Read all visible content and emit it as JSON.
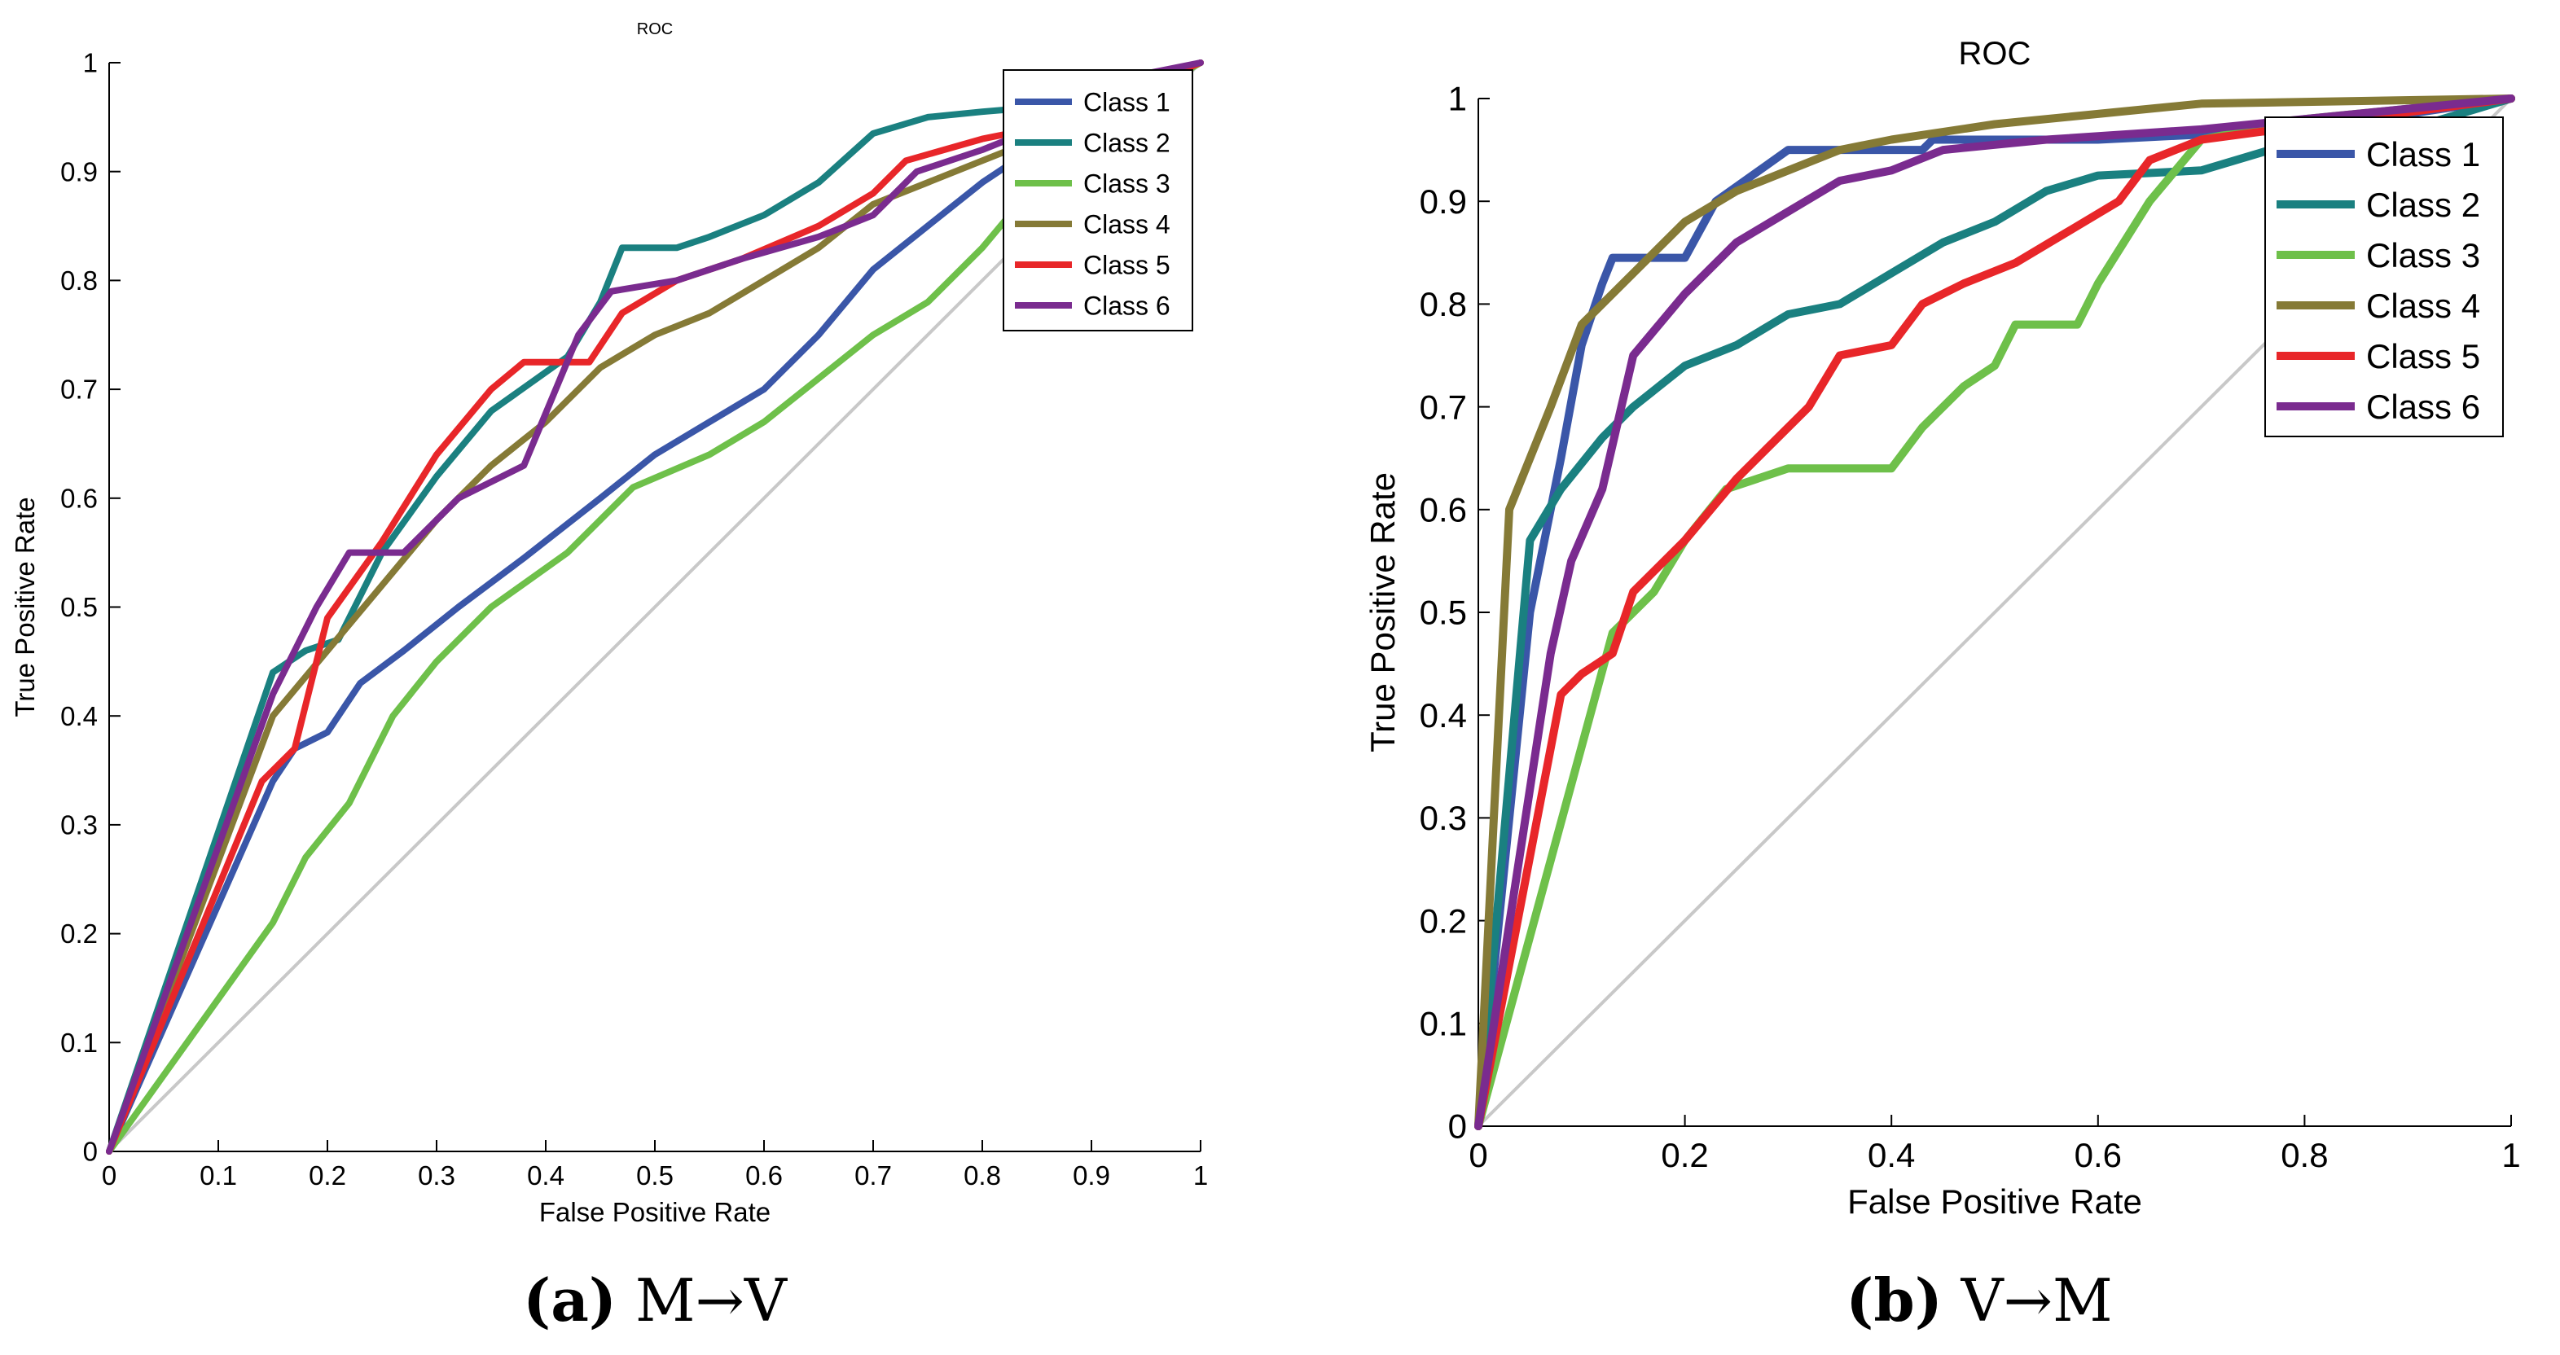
{
  "chart_data": [
    {
      "type": "line",
      "panel": "a",
      "title": "ROC",
      "xlabel": "False Positive Rate",
      "ylabel": "True Positive Rate",
      "xlim": [
        0,
        1
      ],
      "ylim": [
        0,
        1
      ],
      "xticks": [
        "0",
        "0.1",
        "0.2",
        "0.3",
        "0.4",
        "0.5",
        "0.6",
        "0.7",
        "0.8",
        "0.9",
        "1"
      ],
      "yticks": [
        "0",
        "0.1",
        "0.2",
        "0.3",
        "0.4",
        "0.5",
        "0.6",
        "0.7",
        "0.8",
        "0.9",
        "1"
      ],
      "grid": false,
      "legend_position": "top-right",
      "caption_label": "(a)",
      "caption_text": "M→V",
      "diagonal": [
        [
          0,
          0
        ],
        [
          1,
          1
        ]
      ],
      "series": [
        {
          "name": "Class 1",
          "color": "#3a56a8",
          "points": [
            [
              0,
              0
            ],
            [
              0.15,
              0.34
            ],
            [
              0.17,
              0.37
            ],
            [
              0.2,
              0.385
            ],
            [
              0.23,
              0.43
            ],
            [
              0.27,
              0.46
            ],
            [
              0.32,
              0.5
            ],
            [
              0.38,
              0.545
            ],
            [
              0.45,
              0.6
            ],
            [
              0.5,
              0.64
            ],
            [
              0.55,
              0.67
            ],
            [
              0.6,
              0.7
            ],
            [
              0.65,
              0.75
            ],
            [
              0.7,
              0.81
            ],
            [
              0.75,
              0.85
            ],
            [
              0.8,
              0.89
            ],
            [
              0.86,
              0.93
            ],
            [
              0.92,
              0.96
            ],
            [
              0.96,
              0.98
            ],
            [
              1,
              1
            ]
          ]
        },
        {
          "name": "Class 2",
          "color": "#1a8080",
          "points": [
            [
              0,
              0
            ],
            [
              0.15,
              0.44
            ],
            [
              0.18,
              0.46
            ],
            [
              0.21,
              0.47
            ],
            [
              0.25,
              0.55
            ],
            [
              0.3,
              0.62
            ],
            [
              0.35,
              0.68
            ],
            [
              0.42,
              0.73
            ],
            [
              0.45,
              0.78
            ],
            [
              0.47,
              0.83
            ],
            [
              0.52,
              0.83
            ],
            [
              0.55,
              0.84
            ],
            [
              0.6,
              0.86
            ],
            [
              0.65,
              0.89
            ],
            [
              0.7,
              0.935
            ],
            [
              0.75,
              0.95
            ],
            [
              0.8,
              0.955
            ],
            [
              0.86,
              0.96
            ],
            [
              0.93,
              0.975
            ],
            [
              1,
              1
            ]
          ]
        },
        {
          "name": "Class 3",
          "color": "#6ec04a",
          "points": [
            [
              0,
              0
            ],
            [
              0.15,
              0.21
            ],
            [
              0.18,
              0.27
            ],
            [
              0.22,
              0.32
            ],
            [
              0.26,
              0.4
            ],
            [
              0.3,
              0.45
            ],
            [
              0.35,
              0.5
            ],
            [
              0.42,
              0.55
            ],
            [
              0.48,
              0.61
            ],
            [
              0.55,
              0.64
            ],
            [
              0.6,
              0.67
            ],
            [
              0.65,
              0.71
            ],
            [
              0.7,
              0.75
            ],
            [
              0.75,
              0.78
            ],
            [
              0.8,
              0.83
            ],
            [
              0.85,
              0.89
            ],
            [
              0.9,
              0.93
            ],
            [
              0.95,
              0.97
            ],
            [
              1,
              1
            ]
          ]
        },
        {
          "name": "Class 4",
          "color": "#857a36",
          "points": [
            [
              0,
              0
            ],
            [
              0.15,
              0.4
            ],
            [
              0.2,
              0.46
            ],
            [
              0.25,
              0.52
            ],
            [
              0.3,
              0.58
            ],
            [
              0.35,
              0.63
            ],
            [
              0.4,
              0.67
            ],
            [
              0.45,
              0.72
            ],
            [
              0.5,
              0.75
            ],
            [
              0.55,
              0.77
            ],
            [
              0.6,
              0.8
            ],
            [
              0.65,
              0.83
            ],
            [
              0.7,
              0.87
            ],
            [
              0.75,
              0.89
            ],
            [
              0.8,
              0.91
            ],
            [
              0.85,
              0.93
            ],
            [
              0.9,
              0.96
            ],
            [
              0.95,
              0.98
            ],
            [
              1,
              1
            ]
          ]
        },
        {
          "name": "Class 5",
          "color": "#e82629",
          "points": [
            [
              0,
              0
            ],
            [
              0.14,
              0.34
            ],
            [
              0.17,
              0.37
            ],
            [
              0.2,
              0.49
            ],
            [
              0.25,
              0.56
            ],
            [
              0.3,
              0.64
            ],
            [
              0.35,
              0.7
            ],
            [
              0.38,
              0.725
            ],
            [
              0.44,
              0.725
            ],
            [
              0.47,
              0.77
            ],
            [
              0.52,
              0.8
            ],
            [
              0.58,
              0.82
            ],
            [
              0.65,
              0.85
            ],
            [
              0.7,
              0.88
            ],
            [
              0.73,
              0.91
            ],
            [
              0.8,
              0.93
            ],
            [
              0.85,
              0.94
            ],
            [
              0.9,
              0.96
            ],
            [
              0.95,
              0.98
            ],
            [
              1,
              1
            ]
          ]
        },
        {
          "name": "Class 6",
          "color": "#7a2b8f",
          "points": [
            [
              0,
              0
            ],
            [
              0.15,
              0.42
            ],
            [
              0.19,
              0.5
            ],
            [
              0.22,
              0.55
            ],
            [
              0.27,
              0.55
            ],
            [
              0.32,
              0.6
            ],
            [
              0.38,
              0.63
            ],
            [
              0.43,
              0.75
            ],
            [
              0.46,
              0.79
            ],
            [
              0.52,
              0.8
            ],
            [
              0.58,
              0.82
            ],
            [
              0.65,
              0.84
            ],
            [
              0.7,
              0.86
            ],
            [
              0.74,
              0.9
            ],
            [
              0.8,
              0.92
            ],
            [
              0.85,
              0.94
            ],
            [
              0.9,
              0.96
            ],
            [
              0.95,
              0.99
            ],
            [
              1,
              1
            ]
          ]
        }
      ]
    },
    {
      "type": "line",
      "panel": "b",
      "title": "ROC",
      "xlabel": "False Positive Rate",
      "ylabel": "True Positive Rate",
      "xlim": [
        0,
        1
      ],
      "ylim": [
        0,
        1
      ],
      "xticks": [
        "0",
        "0.2",
        "0.4",
        "0.6",
        "0.8",
        "1"
      ],
      "yticks": [
        "0",
        "0.1",
        "0.2",
        "0.3",
        "0.4",
        "0.5",
        "0.6",
        "0.7",
        "0.8",
        "0.9",
        "1"
      ],
      "grid": false,
      "legend_position": "top-right",
      "caption_label": "(b)",
      "caption_text": "V→M",
      "diagonal": [
        [
          0,
          0
        ],
        [
          1,
          1
        ]
      ],
      "series": [
        {
          "name": "Class 1",
          "color": "#3a56a8",
          "points": [
            [
              0,
              0
            ],
            [
              0.05,
              0.5
            ],
            [
              0.08,
              0.65
            ],
            [
              0.1,
              0.76
            ],
            [
              0.12,
              0.82
            ],
            [
              0.13,
              0.845
            ],
            [
              0.2,
              0.845
            ],
            [
              0.23,
              0.9
            ],
            [
              0.3,
              0.95
            ],
            [
              0.43,
              0.95
            ],
            [
              0.44,
              0.96
            ],
            [
              0.6,
              0.96
            ],
            [
              0.8,
              0.97
            ],
            [
              1,
              1
            ]
          ]
        },
        {
          "name": "Class 2",
          "color": "#1a8080",
          "points": [
            [
              0,
              0
            ],
            [
              0.05,
              0.57
            ],
            [
              0.08,
              0.62
            ],
            [
              0.12,
              0.67
            ],
            [
              0.15,
              0.7
            ],
            [
              0.2,
              0.74
            ],
            [
              0.25,
              0.76
            ],
            [
              0.3,
              0.79
            ],
            [
              0.35,
              0.8
            ],
            [
              0.4,
              0.83
            ],
            [
              0.45,
              0.86
            ],
            [
              0.5,
              0.88
            ],
            [
              0.55,
              0.91
            ],
            [
              0.6,
              0.925
            ],
            [
              0.7,
              0.93
            ],
            [
              0.8,
              0.96
            ],
            [
              0.9,
              0.97
            ],
            [
              1,
              1
            ]
          ]
        },
        {
          "name": "Class 3",
          "color": "#6ec04a",
          "points": [
            [
              0,
              0
            ],
            [
              0.13,
              0.48
            ],
            [
              0.17,
              0.52
            ],
            [
              0.2,
              0.57
            ],
            [
              0.24,
              0.62
            ],
            [
              0.3,
              0.64
            ],
            [
              0.4,
              0.64
            ],
            [
              0.43,
              0.68
            ],
            [
              0.47,
              0.72
            ],
            [
              0.5,
              0.74
            ],
            [
              0.52,
              0.78
            ],
            [
              0.58,
              0.78
            ],
            [
              0.6,
              0.82
            ],
            [
              0.65,
              0.9
            ],
            [
              0.7,
              0.96
            ],
            [
              0.8,
              0.98
            ],
            [
              1,
              1
            ]
          ]
        },
        {
          "name": "Class 4",
          "color": "#857a36",
          "points": [
            [
              0,
              0
            ],
            [
              0.03,
              0.6
            ],
            [
              0.07,
              0.7
            ],
            [
              0.1,
              0.78
            ],
            [
              0.15,
              0.83
            ],
            [
              0.2,
              0.88
            ],
            [
              0.25,
              0.91
            ],
            [
              0.3,
              0.93
            ],
            [
              0.35,
              0.95
            ],
            [
              0.4,
              0.96
            ],
            [
              0.5,
              0.975
            ],
            [
              0.6,
              0.985
            ],
            [
              0.7,
              0.995
            ],
            [
              1,
              1
            ]
          ]
        },
        {
          "name": "Class 5",
          "color": "#e82629",
          "points": [
            [
              0,
              0
            ],
            [
              0.08,
              0.42
            ],
            [
              0.1,
              0.44
            ],
            [
              0.13,
              0.46
            ],
            [
              0.15,
              0.52
            ],
            [
              0.2,
              0.57
            ],
            [
              0.25,
              0.63
            ],
            [
              0.28,
              0.66
            ],
            [
              0.32,
              0.7
            ],
            [
              0.35,
              0.75
            ],
            [
              0.4,
              0.76
            ],
            [
              0.43,
              0.8
            ],
            [
              0.47,
              0.82
            ],
            [
              0.52,
              0.84
            ],
            [
              0.57,
              0.87
            ],
            [
              0.62,
              0.9
            ],
            [
              0.65,
              0.94
            ],
            [
              0.7,
              0.96
            ],
            [
              1,
              1
            ]
          ]
        },
        {
          "name": "Class 6",
          "color": "#7a2b8f",
          "points": [
            [
              0,
              0
            ],
            [
              0.07,
              0.46
            ],
            [
              0.09,
              0.55
            ],
            [
              0.12,
              0.62
            ],
            [
              0.15,
              0.75
            ],
            [
              0.2,
              0.81
            ],
            [
              0.25,
              0.86
            ],
            [
              0.3,
              0.89
            ],
            [
              0.35,
              0.92
            ],
            [
              0.4,
              0.93
            ],
            [
              0.45,
              0.95
            ],
            [
              0.55,
              0.96
            ],
            [
              0.7,
              0.97
            ],
            [
              0.8,
              0.98
            ],
            [
              1,
              1
            ]
          ]
        }
      ]
    }
  ]
}
